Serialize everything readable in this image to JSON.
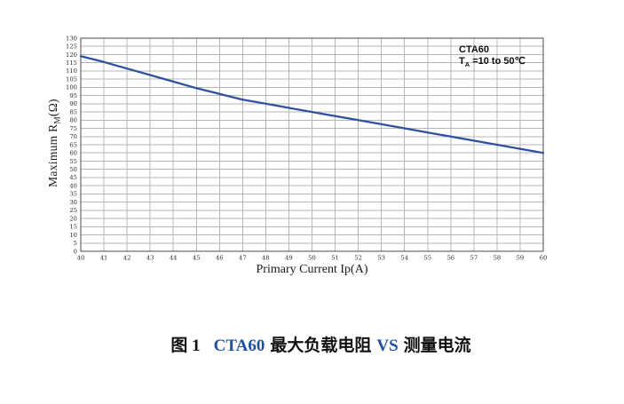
{
  "chart_data": {
    "type": "line",
    "title": "",
    "xlabel": "Primary Current Ip(A)",
    "ylabel": "Maximum RM(Ω)",
    "ylabel_parts": {
      "prefix": "Maximum R",
      "sub": "M",
      "suffix": "(Ω)"
    },
    "xlim": [
      40,
      60
    ],
    "ylim": [
      0,
      130
    ],
    "xtick_step": 1,
    "ytick_step": 5,
    "grid": true,
    "legend": "none",
    "x": [
      40,
      41,
      42,
      43,
      44,
      45,
      46,
      47,
      48,
      49,
      50,
      51,
      52,
      53,
      54,
      55,
      56,
      57,
      58,
      59,
      60
    ],
    "series": [
      {
        "name": "CTA60 maximum load resistance",
        "values": [
          119,
          115.5,
          111.5,
          107.5,
          103.5,
          99.5,
          96,
          92.5,
          90,
          87.5,
          85,
          82.5,
          80,
          77.5,
          75,
          72.5,
          70,
          67.5,
          65,
          62.5,
          60
        ]
      }
    ],
    "line_color": "#31519e",
    "grid_color": "#b5b5b5",
    "border_color": "#4a4a4a",
    "tick_label_color": "#2b2b2b"
  },
  "annotation": {
    "line1": "CTA60",
    "line2_prefix": "T",
    "line2_sub": "A",
    "line2_rest": " =10 to 50℃"
  },
  "caption": {
    "parts": [
      {
        "text": "图 1",
        "color": "#111111"
      },
      {
        "text": "CTA60",
        "color": "#2050a0"
      },
      {
        "text": "最大负载电阻",
        "color": "#111111"
      },
      {
        "text": "VS",
        "color": "#2050a0"
      },
      {
        "text": "测量电流",
        "color": "#111111"
      }
    ]
  },
  "colors": {
    "page_background": "#ffffff",
    "curve": "#31519e",
    "gridlines": "#b5b5b5",
    "plot_border": "#4a4a4a",
    "caption_accent": "#2050a0"
  }
}
